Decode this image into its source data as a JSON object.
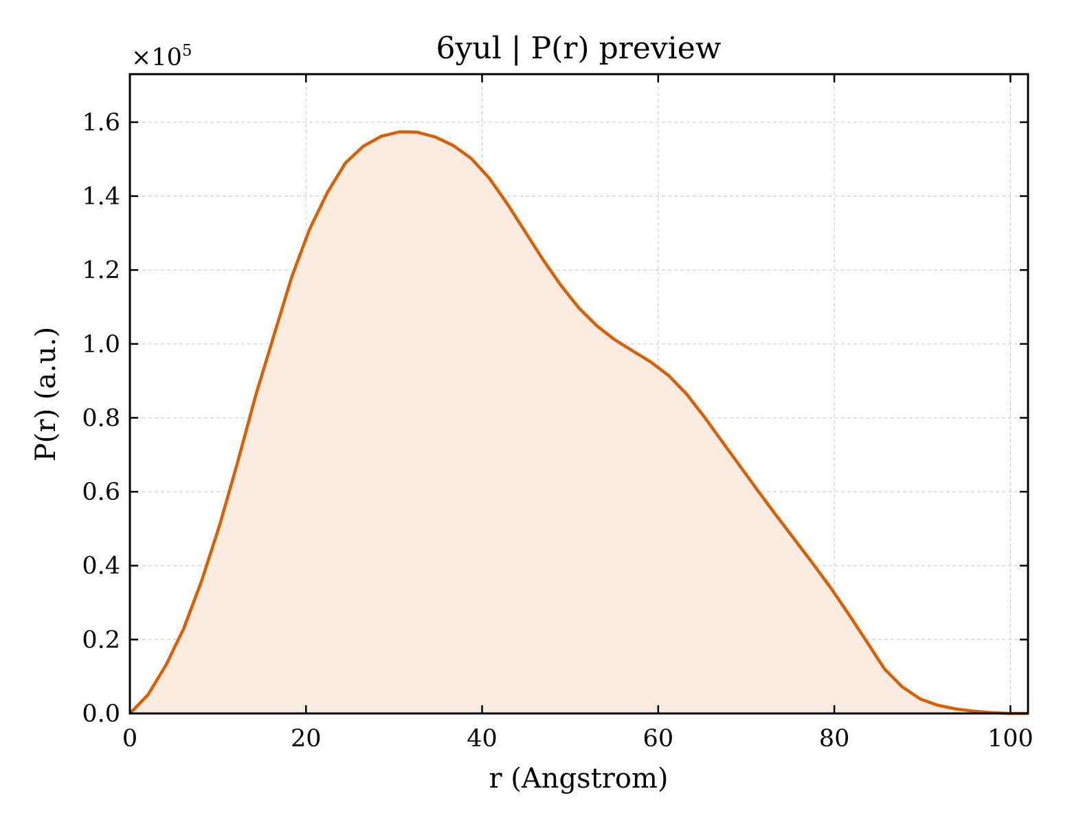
{
  "chart_data": {
    "type": "area",
    "title": "6yul | P(r) preview",
    "xlabel": "r (Angstrom)",
    "ylabel": "P(r) (a.u.)",
    "y_multiplier": {
      "base": "×10",
      "exponent": "5"
    },
    "xlim": [
      0,
      102
    ],
    "ylim": [
      0,
      1.73
    ],
    "x_ticks": [
      0,
      20,
      40,
      60,
      80,
      100
    ],
    "x_tick_labels": [
      "0",
      "20",
      "40",
      "60",
      "80",
      "100"
    ],
    "y_ticks": [
      0,
      0.2,
      0.4,
      0.6,
      0.8,
      1.0,
      1.2,
      1.4,
      1.6
    ],
    "y_tick_labels": [
      "0.0",
      "0.2",
      "0.4",
      "0.6",
      "0.8",
      "1.0",
      "1.2",
      "1.4",
      "1.6"
    ],
    "grid": true,
    "series": [
      {
        "x": [
          0,
          2.04,
          4.08,
          6.12,
          8.16,
          10.2,
          12.24,
          14.28,
          16.32,
          18.36,
          20.4,
          22.44,
          24.48,
          26.52,
          28.56,
          30.6,
          32.64,
          34.68,
          36.72,
          38.76,
          40.8,
          42.84,
          44.88,
          46.92,
          48.96,
          51.0,
          53.04,
          55.08,
          57.12,
          59.16,
          61.2,
          63.24,
          65.28,
          67.32,
          69.36,
          71.4,
          73.44,
          75.48,
          77.52,
          79.56,
          81.6,
          83.64,
          85.68,
          87.72,
          89.76,
          91.8,
          93.84,
          95.88,
          97.92,
          99.96,
          102.0
        ],
        "values": [
          0.0,
          0.05,
          0.13,
          0.23,
          0.36,
          0.51,
          0.68,
          0.86,
          1.02,
          1.18,
          1.31,
          1.41,
          1.49,
          1.535,
          1.562,
          1.574,
          1.573,
          1.56,
          1.537,
          1.502,
          1.449,
          1.38,
          1.304,
          1.228,
          1.158,
          1.097,
          1.049,
          1.011,
          0.981,
          0.951,
          0.914,
          0.864,
          0.801,
          0.734,
          0.667,
          0.6,
          0.535,
          0.471,
          0.407,
          0.341,
          0.27,
          0.196,
          0.121,
          0.072,
          0.039,
          0.022,
          0.012,
          0.006,
          0.002,
          0.0,
          0.0
        ]
      }
    ],
    "colors": {
      "line": "#d95f02",
      "fill": "#f9ebe0",
      "grid": "#d0d0d0"
    }
  }
}
